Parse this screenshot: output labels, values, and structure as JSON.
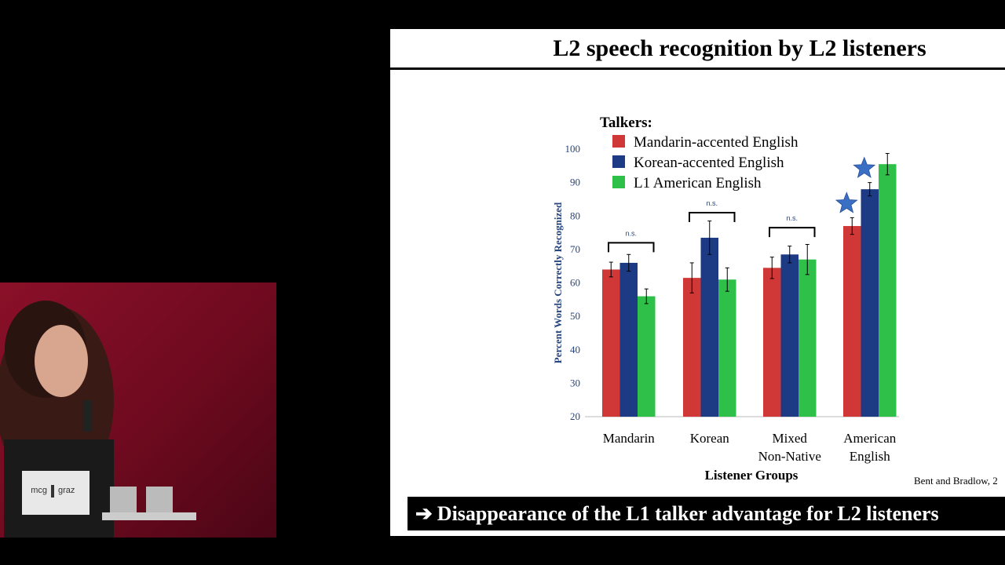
{
  "slide": {
    "title": "L2 speech recognition by L2 listeners",
    "conclusion": "Disappearance of the L1 talker advantage for L2 listeners",
    "conclusion_arrow": "➔",
    "citation": "Bent and Bradlow, 2"
  },
  "booth": {
    "logo_left": "mcg",
    "logo_right": "graz"
  },
  "chart_data": {
    "type": "bar",
    "ylabel": "Percent Words Correctly Recognized",
    "xlabel": "Listener Groups",
    "legend_title": "Talkers:",
    "legend_position": "top",
    "ylim": [
      20,
      100
    ],
    "yticks": [
      20,
      30,
      40,
      50,
      60,
      70,
      80,
      90,
      100
    ],
    "categories": [
      "Mandarin",
      "Korean",
      "Mixed Non-Native",
      "American English"
    ],
    "category_lines": [
      [
        "Mandarin"
      ],
      [
        "Korean"
      ],
      [
        "Mixed",
        "Non-Native"
      ],
      [
        "American",
        "English"
      ]
    ],
    "series": [
      {
        "name": "Mandarin-accented English",
        "color": "#d03838",
        "values": [
          64,
          61.5,
          64.5,
          77
        ],
        "errors": [
          2.2,
          4.5,
          3.2,
          2.5
        ]
      },
      {
        "name": "Korean-accented English",
        "color": "#1d3a84",
        "values": [
          66,
          73.5,
          68.5,
          88
        ],
        "errors": [
          2.5,
          5,
          2.5,
          2
        ]
      },
      {
        "name": "L1 American English",
        "color": "#2fc04a",
        "values": [
          56,
          61,
          67,
          95.5
        ],
        "errors": [
          2.2,
          3.5,
          4.5,
          3.2
        ]
      }
    ],
    "brackets": [
      {
        "category": 0,
        "label": "n.s.",
        "level": 72
      },
      {
        "category": 1,
        "label": "n.s.",
        "level": 81
      },
      {
        "category": 2,
        "label": "n.s.",
        "level": 76.5
      }
    ],
    "stars": [
      {
        "category": 3,
        "series": 0,
        "color": "#3a6fc4"
      },
      {
        "category": 3,
        "series": 1,
        "color": "#3a6fc4"
      }
    ]
  }
}
